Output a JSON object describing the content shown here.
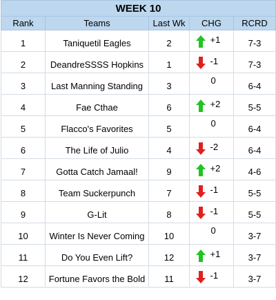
{
  "title": "WEEK 10",
  "headers": {
    "rank": "Rank",
    "teams": "Teams",
    "last_wk": "Last Wk",
    "chg": "CHG",
    "rcrd": "RCRD"
  },
  "colors": {
    "header_bg": "#bdd7ee",
    "up": "#22c322",
    "down": "#e02020"
  },
  "rows": [
    {
      "rank": "1",
      "team": "Taniquetil Eagles",
      "last": "2",
      "dir": "up",
      "chg": "+1",
      "rec": "7-3"
    },
    {
      "rank": "2",
      "team": "DeandreSSSS Hopkins",
      "last": "1",
      "dir": "down",
      "chg": "-1",
      "rec": "7-3"
    },
    {
      "rank": "3",
      "team": "Last Manning Standing",
      "last": "3",
      "dir": "none",
      "chg": "0",
      "rec": "6-4"
    },
    {
      "rank": "4",
      "team": "Fae Cthae",
      "last": "6",
      "dir": "up",
      "chg": "+2",
      "rec": "5-5"
    },
    {
      "rank": "5",
      "team": "Flacco's Favorites",
      "last": "5",
      "dir": "none",
      "chg": "0",
      "rec": "6-4"
    },
    {
      "rank": "6",
      "team": "The Life of Julio",
      "last": "4",
      "dir": "down",
      "chg": "-2",
      "rec": "6-4"
    },
    {
      "rank": "7",
      "team": "Gotta Catch Jamaal!",
      "last": "9",
      "dir": "up",
      "chg": "+2",
      "rec": "4-6"
    },
    {
      "rank": "8",
      "team": "Team Suckerpunch",
      "last": "7",
      "dir": "down",
      "chg": "-1",
      "rec": "5-5"
    },
    {
      "rank": "9",
      "team": "G-Lit",
      "last": "8",
      "dir": "down",
      "chg": "-1",
      "rec": "5-5"
    },
    {
      "rank": "10",
      "team": "Winter Is Never Coming",
      "last": "10",
      "dir": "none",
      "chg": "0",
      "rec": "3-7"
    },
    {
      "rank": "11",
      "team": "Do You Even Lift?",
      "last": "12",
      "dir": "up",
      "chg": "+1",
      "rec": "3-7"
    },
    {
      "rank": "12",
      "team": "Fortune Favors the Bold",
      "last": "11",
      "dir": "down",
      "chg": "-1",
      "rec": "3-7"
    }
  ]
}
